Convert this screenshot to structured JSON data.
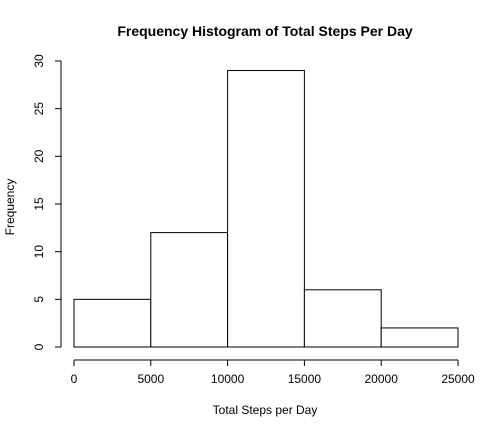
{
  "chart_data": {
    "type": "bar",
    "title": "Frequency Histogram of Total Steps Per Day",
    "xlabel": "Total Steps per Day",
    "ylabel": "Frequency",
    "bins": [
      {
        "from": 0,
        "to": 5000,
        "count": 5
      },
      {
        "from": 5000,
        "to": 10000,
        "count": 12
      },
      {
        "from": 10000,
        "to": 15000,
        "count": 29
      },
      {
        "from": 15000,
        "to": 20000,
        "count": 6
      },
      {
        "from": 20000,
        "to": 25000,
        "count": 2
      }
    ],
    "xlim": [
      0,
      25000
    ],
    "ylim": [
      0,
      30
    ],
    "xticks": [
      0,
      5000,
      10000,
      15000,
      20000,
      25000
    ],
    "yticks": [
      0,
      5,
      10,
      15,
      20,
      25,
      30
    ],
    "grid": false,
    "bar_fill": "#ffffff",
    "bar_stroke": "#000000"
  }
}
